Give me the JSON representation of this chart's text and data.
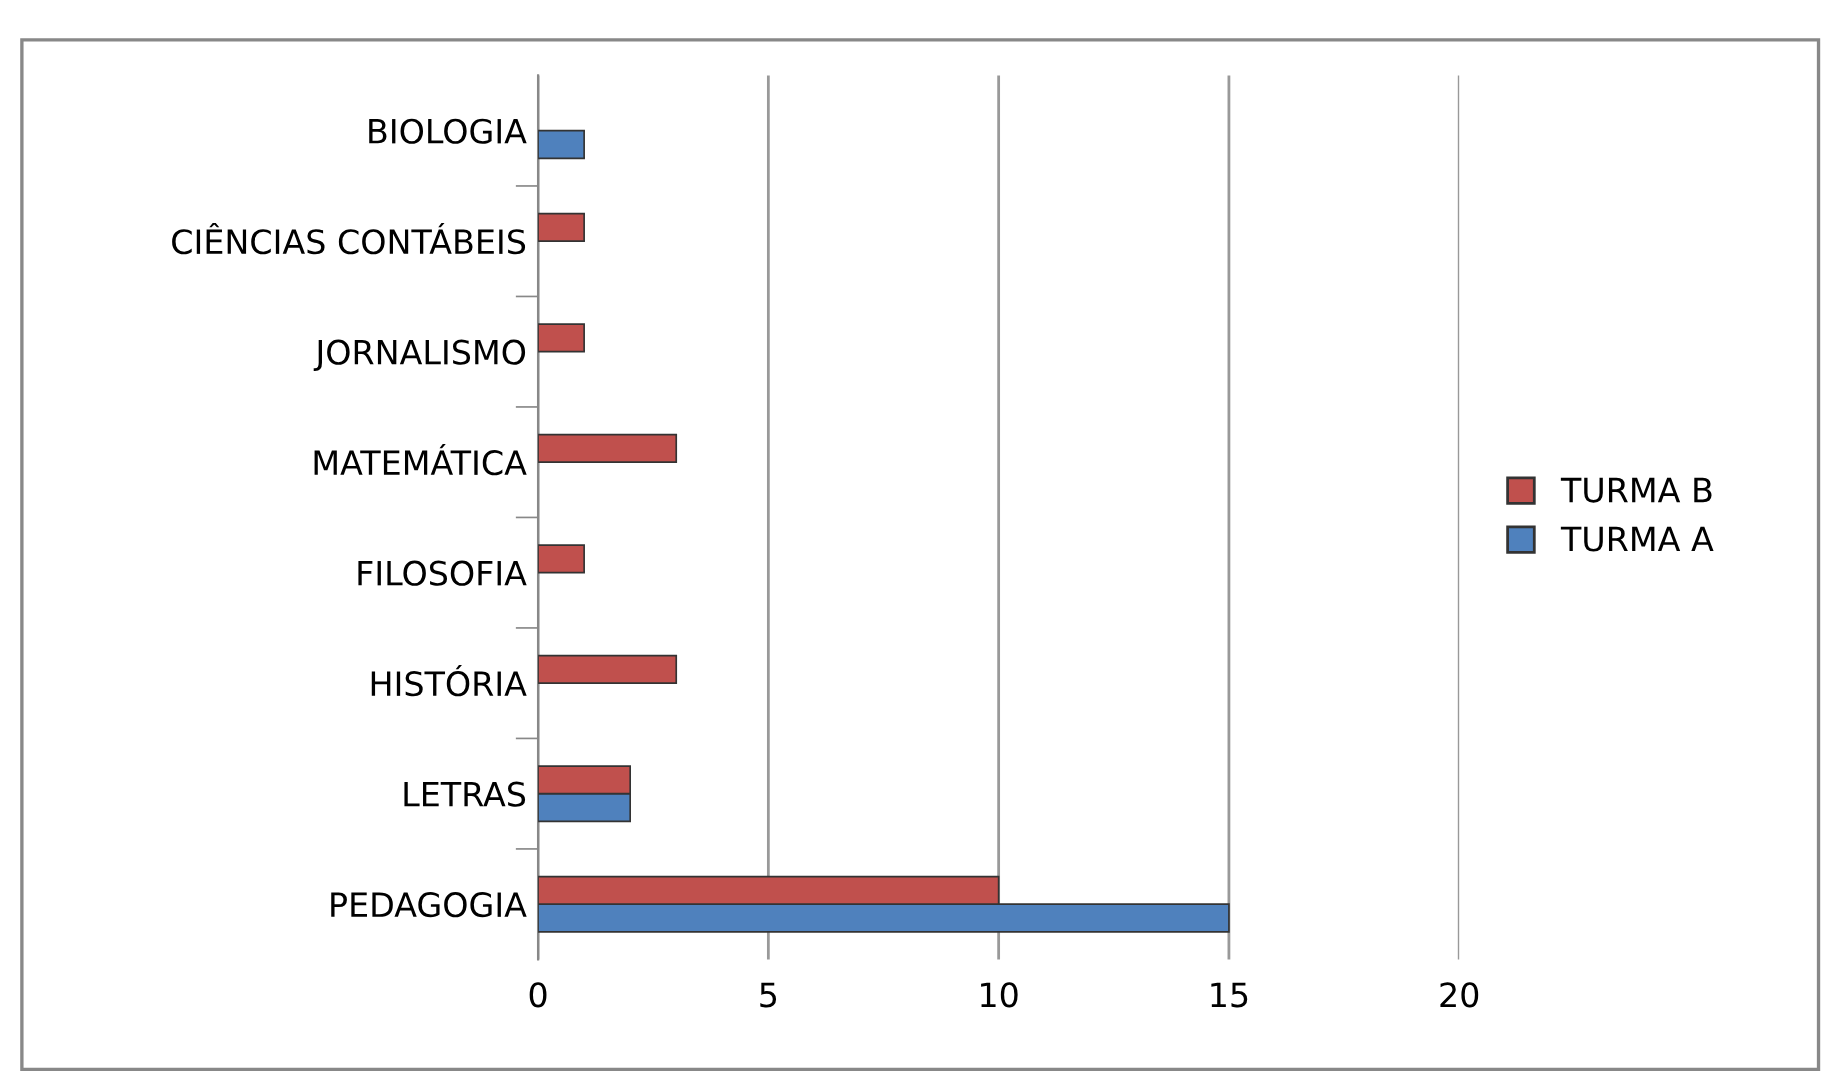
{
  "chart_data": {
    "type": "bar",
    "orientation": "horizontal",
    "categories": [
      "BIOLOGIA",
      "CIÊNCIAS CONTÁBEIS",
      "JORNALISMO",
      "MATEMÁTICA",
      "FILOSOFIA",
      "HISTÓRIA",
      "LETRAS",
      "PEDAGOGIA"
    ],
    "series": [
      {
        "name": "TURMA A",
        "color": "#4f81bd",
        "values": [
          1,
          null,
          null,
          null,
          null,
          null,
          2,
          15
        ]
      },
      {
        "name": "TURMA B",
        "color": "#c0504d",
        "values": [
          null,
          1,
          1,
          3,
          1,
          3,
          2,
          10
        ]
      }
    ],
    "xlim": [
      0,
      20
    ],
    "xticks": [
      0,
      5,
      10,
      15,
      20
    ],
    "grid": "x",
    "legend": "right"
  }
}
